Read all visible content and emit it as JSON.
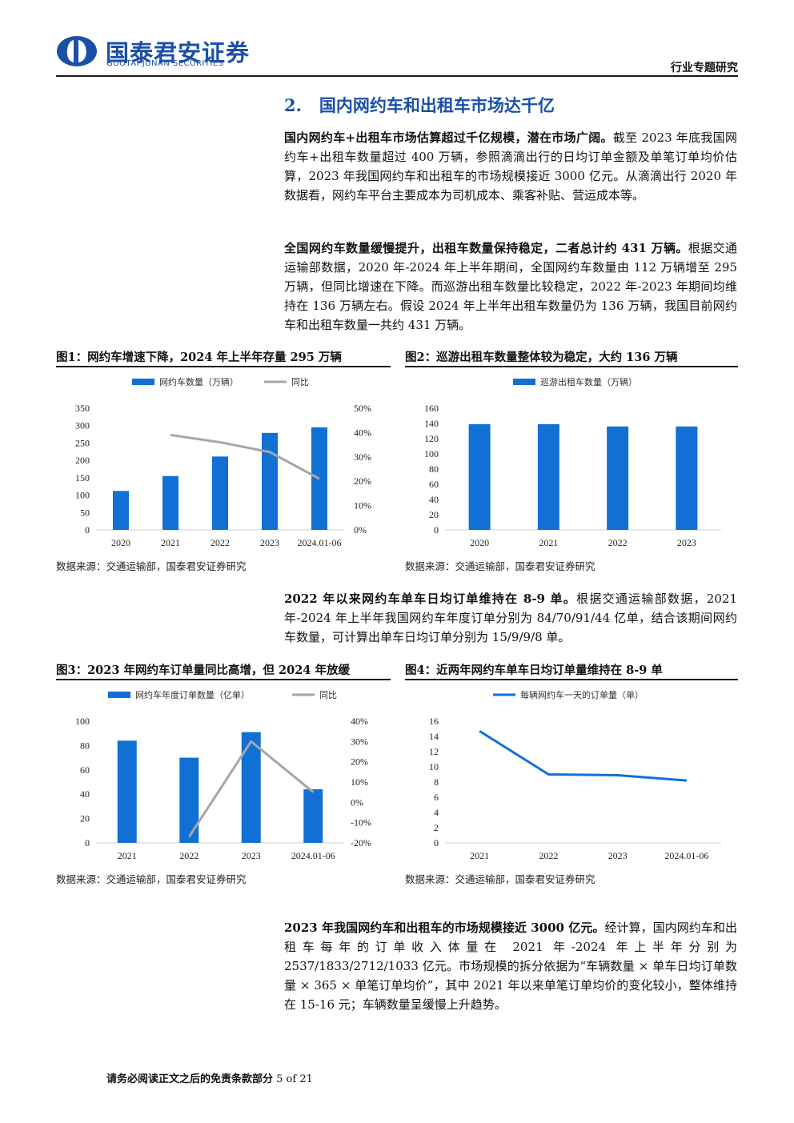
{
  "header": {
    "brand_cn": "国泰君安证券",
    "brand_en": "GUOTAI JUNAN SECURITIES",
    "report_type": "行业专题研究",
    "brand_color": "#1b4fa8"
  },
  "section": {
    "title": "2.   国内网约车和出租车市场达千亿"
  },
  "paragraphs": {
    "p1_bold": "国内网约车+出租车市场估算超过千亿规模，潜在市场广阔。",
    "p1_text": "截至 2023 年底我国网约车+出租车数量超过 400 万辆，参照滴滴出行的日均订单金额及单笔订单均价估算，2023 年我国网约车和出租车的市场规模接近 3000 亿元。从滴滴出行 2020 年数据看，网约车平台主要成本为司机成本、乘客补贴、营运成本等。",
    "p2_bold": "全国网约车数量缓慢提升，出租车数量保持稳定，二者总计约 431 万辆。",
    "p2_text": "根据交通运输部数据，2020 年-2024 年上半年期间，全国网约车数量由 112 万辆增至 295 万辆，但同比增速在下降。而巡游出租车数量比较稳定，2022 年-2023 年期间均维持在 136 万辆左右。假设 2024 年上半年出租车数量仍为 136 万辆，我国目前网约车和出租车数量一共约 431 万辆。",
    "p3_bold": "2022 年以来网约车单车日均订单维持在 8-9 单。",
    "p3_text": "根据交通运输部数据，2021 年-2024 年上半年我国网约车年度订单分别为 84/70/91/44 亿单，结合该期间网约车数量，可计算出单车日均订单分别为 15/9/9/8 单。",
    "p4_bold": "2023 年我国网约车和出租车的市场规模接近 3000 亿元。",
    "p4_text": "经计算，国内网约车和出租车每年的订单收入体量在 2021 年-2024 年上半年分别为 2537/1833/2712/1033 亿元。市场规模的拆分依据为“车辆数量 × 单车日均订单数量 × 365 × 单笔订单均价”，其中 2021 年以来单笔订单均价的变化较小，整体维持在 15-16 元；车辆数量呈缓慢上升趋势。"
  },
  "figures": {
    "fig1_title": "图1：网约车增速下降，2024 年上半年存量 295 万辆",
    "fig2_title": "图2：巡游出租车数量整体较为稳定，大约 136 万辆",
    "fig3_title": "图3：2023 年网约车订单量同比高增，但 2024 年放缓",
    "fig4_title": "图4：近两年网约车单车日均订单量维持在 8-9 单",
    "source": "数据来源：交通运输部，国泰君安证券研究"
  },
  "footer": {
    "disclaimer": "请务必阅读正文之后的免责条款部分",
    "page": "5 of 21"
  },
  "chart_data": [
    {
      "id": "fig1",
      "type": "bar",
      "categories": [
        "2020",
        "2021",
        "2022",
        "2023",
        "2024.01-06"
      ],
      "series": [
        {
          "name": "网约车数量（万辆）",
          "type": "bar",
          "axis": "left",
          "values": [
            112,
            155,
            211,
            279,
            295
          ],
          "color": "#1170d4"
        },
        {
          "name": "同比",
          "type": "line",
          "axis": "right",
          "values": [
            null,
            39,
            36,
            32,
            21
          ],
          "color": "#a6a6a6"
        }
      ],
      "ylim": [
        0,
        350
      ],
      "yticks": [
        0,
        50,
        100,
        150,
        200,
        250,
        300,
        350
      ],
      "y2lim": [
        0,
        50
      ],
      "y2ticks": [
        "0%",
        "10%",
        "20%",
        "30%",
        "40%",
        "50%"
      ],
      "legend": "top",
      "grid": false
    },
    {
      "id": "fig2",
      "type": "bar",
      "categories": [
        "2020",
        "2021",
        "2022",
        "2023"
      ],
      "series": [
        {
          "name": "巡游出租车数量（万辆）",
          "type": "bar",
          "axis": "left",
          "values": [
            139,
            139,
            136,
            136
          ],
          "color": "#1170d4"
        }
      ],
      "ylim": [
        0,
        160
      ],
      "yticks": [
        0,
        20,
        40,
        60,
        80,
        100,
        120,
        140,
        160
      ],
      "legend": "top",
      "grid": false
    },
    {
      "id": "fig3",
      "type": "bar",
      "categories": [
        "2021",
        "2022",
        "2023",
        "2024.01-06"
      ],
      "series": [
        {
          "name": "网约车年度订单数量（亿单）",
          "type": "bar",
          "axis": "left",
          "values": [
            84,
            70,
            91,
            44
          ],
          "color": "#1170d4"
        },
        {
          "name": "同比",
          "type": "line",
          "axis": "right",
          "values": [
            null,
            -17,
            30,
            5
          ],
          "color": "#a6a6a6"
        }
      ],
      "ylim": [
        0,
        100
      ],
      "yticks": [
        0,
        20,
        40,
        60,
        80,
        100
      ],
      "y2lim": [
        -20,
        40
      ],
      "y2ticks": [
        "-20%",
        "-10%",
        "0%",
        "10%",
        "20%",
        "30%",
        "40%"
      ],
      "legend": "top",
      "grid": false
    },
    {
      "id": "fig4",
      "type": "line",
      "categories": [
        "2021",
        "2022",
        "2023",
        "2024.01-06"
      ],
      "series": [
        {
          "name": "每辆网约车一天的订单量（单）",
          "type": "line",
          "axis": "left",
          "values": [
            14.7,
            9.0,
            8.9,
            8.2
          ],
          "color": "#1170d4"
        }
      ],
      "ylim": [
        0,
        16
      ],
      "yticks": [
        0,
        2,
        4,
        6,
        8,
        10,
        12,
        14,
        16
      ],
      "legend": "top",
      "grid": false
    }
  ]
}
